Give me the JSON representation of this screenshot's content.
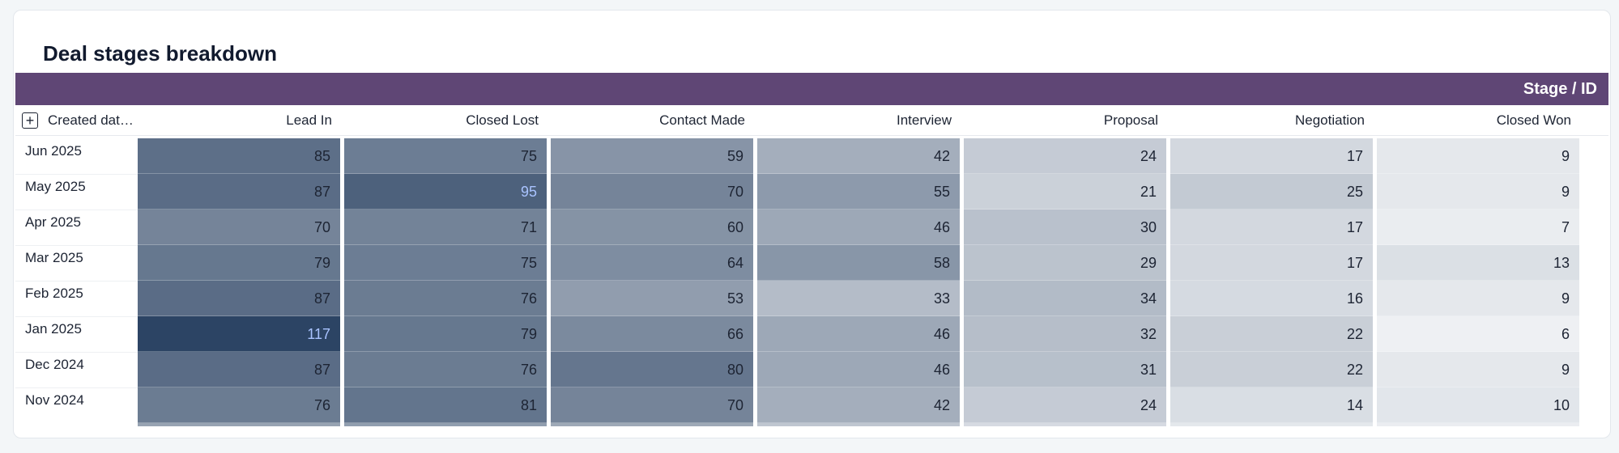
{
  "title": "Deal stages breakdown",
  "pivot_header": "Stage / ID",
  "row_header": "Created dat…",
  "expand_icon": "plus-square-icon",
  "columns": [
    "Lead In",
    "Closed Lost",
    "Contact Made",
    "Interview",
    "Proposal",
    "Negotiation",
    "Closed Won"
  ],
  "rows": [
    {
      "label": "Jun 2025",
      "values": [
        85,
        75,
        59,
        42,
        24,
        17,
        9
      ]
    },
    {
      "label": "May 2025",
      "values": [
        87,
        95,
        70,
        55,
        21,
        25,
        9
      ]
    },
    {
      "label": "Apr 2025",
      "values": [
        70,
        71,
        60,
        46,
        30,
        17,
        7
      ]
    },
    {
      "label": "Mar 2025",
      "values": [
        79,
        75,
        64,
        58,
        29,
        17,
        13
      ]
    },
    {
      "label": "Feb 2025",
      "values": [
        87,
        76,
        53,
        33,
        34,
        16,
        9
      ]
    },
    {
      "label": "Jan 2025",
      "values": [
        117,
        79,
        66,
        46,
        32,
        22,
        6
      ]
    },
    {
      "label": "Dec 2024",
      "values": [
        87,
        76,
        80,
        46,
        31,
        22,
        9
      ]
    },
    {
      "label": "Nov 2024",
      "values": [
        76,
        81,
        70,
        42,
        24,
        14,
        10
      ]
    }
  ],
  "colors": {
    "header_band": "#5f4675",
    "heat_low": "#eef0f3",
    "heat_high": "#2c4464",
    "highlight_text": "#a9c3ff",
    "cell_text": "#1d2433"
  },
  "chart_data": {
    "type": "heatmap",
    "title": "Deal stages breakdown",
    "column_group_label": "Stage / ID",
    "row_label": "Created dat…",
    "x": [
      "Lead In",
      "Closed Lost",
      "Contact Made",
      "Interview",
      "Proposal",
      "Negotiation",
      "Closed Won"
    ],
    "y": [
      "Jun 2025",
      "May 2025",
      "Apr 2025",
      "Mar 2025",
      "Feb 2025",
      "Jan 2025",
      "Dec 2024",
      "Nov 2024"
    ],
    "values": [
      [
        85,
        75,
        59,
        42,
        24,
        17,
        9
      ],
      [
        87,
        95,
        70,
        55,
        21,
        25,
        9
      ],
      [
        70,
        71,
        60,
        46,
        30,
        17,
        7
      ],
      [
        79,
        75,
        64,
        58,
        29,
        17,
        13
      ],
      [
        87,
        76,
        53,
        33,
        34,
        16,
        9
      ],
      [
        117,
        79,
        66,
        46,
        32,
        22,
        6
      ],
      [
        87,
        76,
        80,
        46,
        31,
        22,
        9
      ],
      [
        76,
        81,
        70,
        42,
        24,
        14,
        10
      ]
    ],
    "range": [
      6,
      117
    ]
  }
}
